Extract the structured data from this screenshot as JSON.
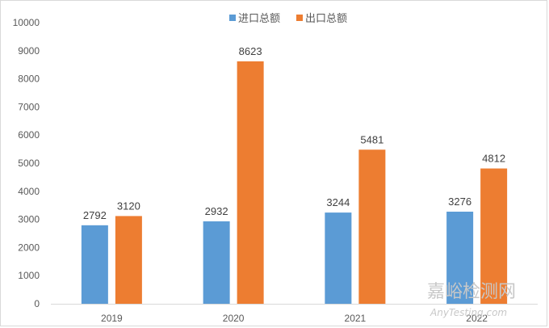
{
  "chart_data": {
    "type": "bar",
    "categories": [
      "2019",
      "2020",
      "2021",
      "2022"
    ],
    "series": [
      {
        "name": "进口总额",
        "color": "#5b9bd5",
        "values": [
          2792,
          2932,
          3244,
          3276
        ]
      },
      {
        "name": "出口总额",
        "color": "#ed7d31",
        "values": [
          3120,
          8623,
          5481,
          4812
        ]
      }
    ],
    "ylim": [
      0,
      10000
    ],
    "yticks": [
      0,
      1000,
      2000,
      3000,
      4000,
      5000,
      6000,
      7000,
      8000,
      9000,
      10000
    ],
    "grid": false,
    "legend_position": "top"
  },
  "watermark": {
    "cn": "嘉峪检测网",
    "en": "AnyTesting.com"
  }
}
